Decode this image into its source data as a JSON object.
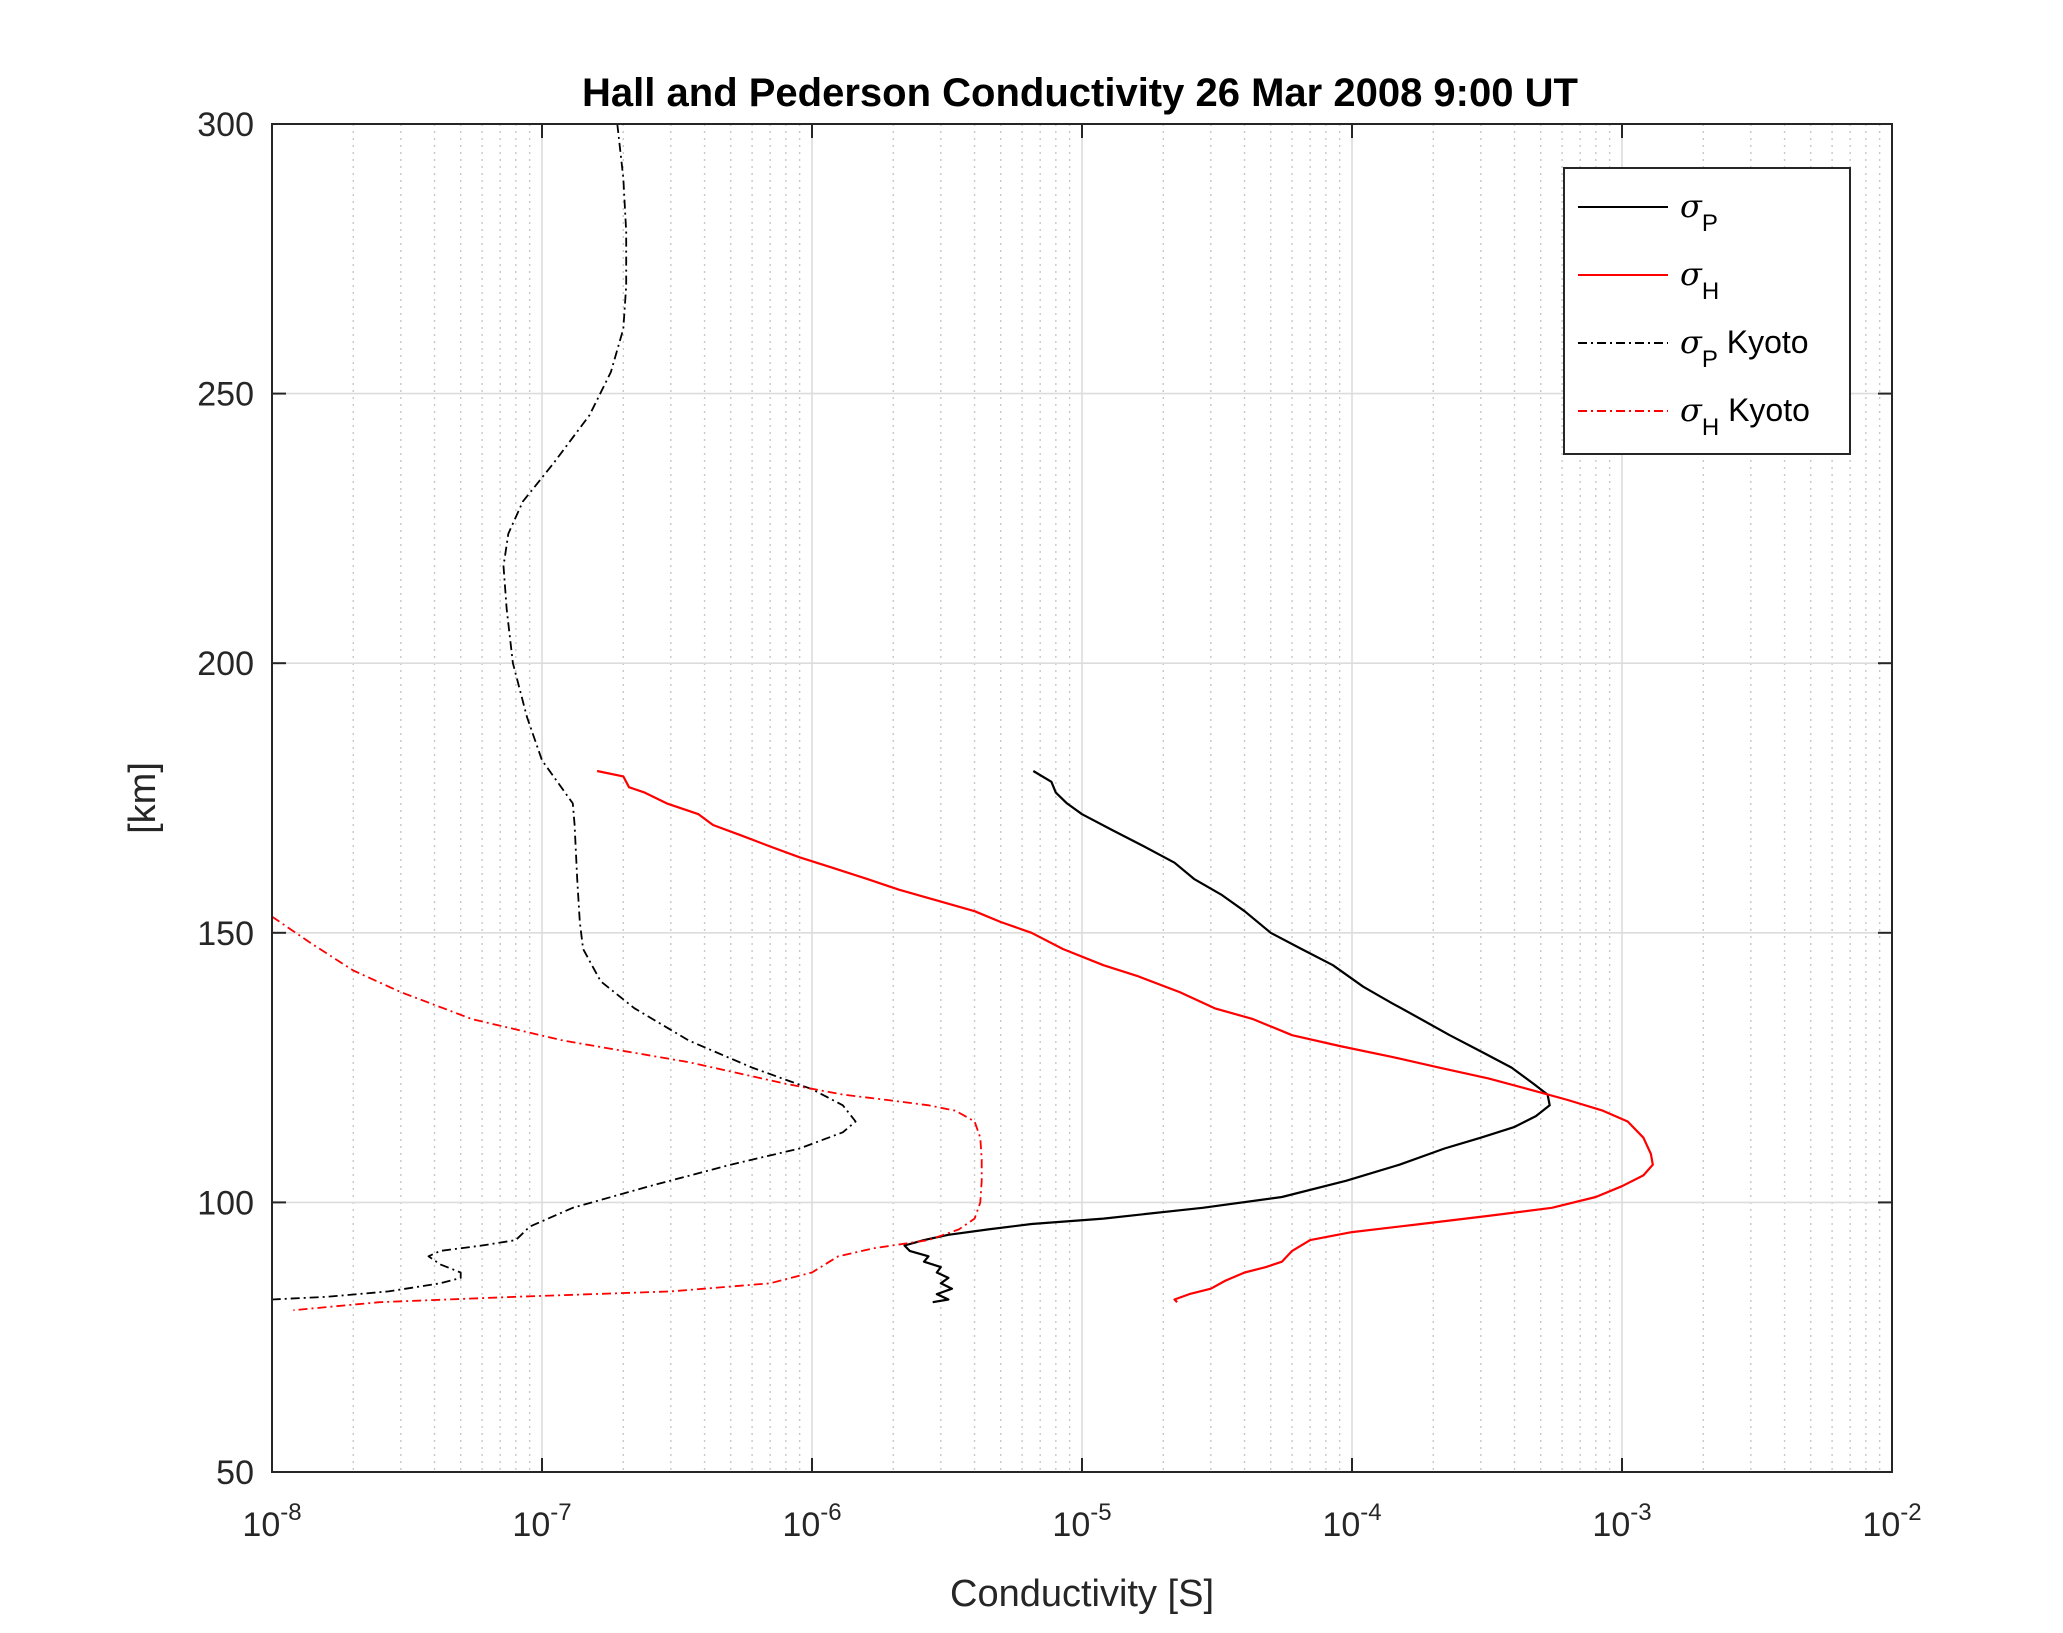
{
  "chart_data": {
    "type": "line",
    "title": "Hall and Pederson Conductivity 26 Mar 2008 9:00 UT",
    "xlabel": "Conductivity [S]",
    "ylabel": "[km]",
    "xscale": "log",
    "xlim": [
      1e-08,
      0.01
    ],
    "ylim": [
      50,
      300
    ],
    "xticks": [
      1e-08,
      1e-07,
      1e-06,
      1e-05,
      0.0001,
      0.001,
      0.01
    ],
    "xtick_labels": [
      {
        "base": "10",
        "exp": "-8"
      },
      {
        "base": "10",
        "exp": "-7"
      },
      {
        "base": "10",
        "exp": "-6"
      },
      {
        "base": "10",
        "exp": "-5"
      },
      {
        "base": "10",
        "exp": "-4"
      },
      {
        "base": "10",
        "exp": "-3"
      },
      {
        "base": "10",
        "exp": "-2"
      }
    ],
    "yticks": [
      50,
      100,
      150,
      200,
      250,
      300
    ],
    "grid": true,
    "minor_grid_x": true,
    "legend_position": "top-right",
    "series": [
      {
        "id": "sigma-p",
        "legend": {
          "symbol": "σ",
          "sub": "P",
          "suffix": ""
        },
        "color": "#000000",
        "dash": "solid",
        "points": [
          [
            6.6e-06,
            180
          ],
          [
            7.7e-06,
            178
          ],
          [
            8e-06,
            176
          ],
          [
            8.8e-06,
            174
          ],
          [
            1e-05,
            172
          ],
          [
            1.3e-05,
            169
          ],
          [
            1.7e-05,
            166
          ],
          [
            2.2e-05,
            163
          ],
          [
            2.6e-05,
            160
          ],
          [
            3.3e-05,
            157
          ],
          [
            4e-05,
            154
          ],
          [
            5e-05,
            150
          ],
          [
            6.5e-05,
            147
          ],
          [
            8.5e-05,
            144
          ],
          [
            0.00011,
            140
          ],
          [
            0.00014,
            137
          ],
          [
            0.00018,
            134
          ],
          [
            0.00023,
            131
          ],
          [
            0.0003,
            128
          ],
          [
            0.00039,
            125
          ],
          [
            0.00047,
            122
          ],
          [
            0.00053,
            120
          ],
          [
            0.00054,
            118
          ],
          [
            0.00048,
            116
          ],
          [
            0.0004,
            114
          ],
          [
            0.0003,
            112
          ],
          [
            0.00022,
            110
          ],
          [
            0.00015,
            107
          ],
          [
            9.5e-05,
            104
          ],
          [
            5.5e-05,
            101
          ],
          [
            2.8e-05,
            99
          ],
          [
            1.2e-05,
            97
          ],
          [
            6.5e-06,
            96
          ],
          [
            4.5e-06,
            95
          ],
          [
            3.2e-06,
            94
          ],
          [
            2.6e-06,
            93
          ],
          [
            2.2e-06,
            92
          ],
          [
            2.3e-06,
            91
          ],
          [
            2.7e-06,
            90
          ],
          [
            2.6e-06,
            89
          ],
          [
            3e-06,
            88
          ],
          [
            2.9e-06,
            87
          ],
          [
            3.2e-06,
            86
          ],
          [
            3e-06,
            85
          ],
          [
            3.3e-06,
            84
          ],
          [
            2.9e-06,
            83
          ],
          [
            3.2e-06,
            82
          ],
          [
            2.8e-06,
            81.5
          ]
        ]
      },
      {
        "id": "sigma-h",
        "legend": {
          "symbol": "σ",
          "sub": "H",
          "suffix": ""
        },
        "color": "#ff0000",
        "dash": "solid",
        "points": [
          [
            1.6e-07,
            180
          ],
          [
            2e-07,
            179
          ],
          [
            2.1e-07,
            177
          ],
          [
            2.4e-07,
            176
          ],
          [
            2.9e-07,
            174
          ],
          [
            3.8e-07,
            172
          ],
          [
            4.3e-07,
            170
          ],
          [
            5.5e-07,
            168
          ],
          [
            7e-07,
            166
          ],
          [
            9e-07,
            164
          ],
          [
            1.2e-06,
            162
          ],
          [
            1.6e-06,
            160
          ],
          [
            2.1e-06,
            158
          ],
          [
            2.9e-06,
            156
          ],
          [
            4e-06,
            154
          ],
          [
            5e-06,
            152
          ],
          [
            6.5e-06,
            150
          ],
          [
            8.5e-06,
            147
          ],
          [
            1.2e-05,
            144
          ],
          [
            1.6e-05,
            142
          ],
          [
            2.3e-05,
            139
          ],
          [
            3.1e-05,
            136
          ],
          [
            4.3e-05,
            134
          ],
          [
            6e-05,
            131
          ],
          [
            9e-05,
            129
          ],
          [
            0.00014,
            127
          ],
          [
            0.00021,
            125
          ],
          [
            0.00032,
            123
          ],
          [
            0.00045,
            121
          ],
          [
            0.00063,
            119
          ],
          [
            0.00085,
            117
          ],
          [
            0.00105,
            115
          ],
          [
            0.0012,
            112
          ],
          [
            0.00128,
            109
          ],
          [
            0.0013,
            107
          ],
          [
            0.0012,
            105
          ],
          [
            0.001,
            103
          ],
          [
            0.0008,
            101
          ],
          [
            0.00055,
            99
          ],
          [
            0.00032,
            97.5
          ],
          [
            0.00018,
            96
          ],
          [
            0.0001,
            94.5
          ],
          [
            7e-05,
            93
          ],
          [
            6e-05,
            91
          ],
          [
            5.5e-05,
            89
          ],
          [
            4.8e-05,
            88
          ],
          [
            4e-05,
            87
          ],
          [
            3.4e-05,
            85.5
          ],
          [
            3e-05,
            84
          ],
          [
            2.5e-05,
            83
          ],
          [
            2.2e-05,
            82
          ],
          [
            2.25e-05,
            81.5
          ]
        ]
      },
      {
        "id": "sigma-p-kyoto",
        "legend": {
          "symbol": "σ",
          "sub": "P",
          "suffix": " Kyoto"
        },
        "color": "#000000",
        "dash": "dashdot",
        "points": [
          [
            1.9e-07,
            300
          ],
          [
            2e-07,
            290
          ],
          [
            2.05e-07,
            280
          ],
          [
            2.05e-07,
            270
          ],
          [
            2e-07,
            262
          ],
          [
            1.8e-07,
            254
          ],
          [
            1.5e-07,
            246
          ],
          [
            1.1e-07,
            237
          ],
          [
            8.5e-08,
            230
          ],
          [
            7.5e-08,
            224
          ],
          [
            7.2e-08,
            218
          ],
          [
            7.4e-08,
            210
          ],
          [
            7.8e-08,
            200
          ],
          [
            8.8e-08,
            190
          ],
          [
            1e-07,
            182
          ],
          [
            1.3e-07,
            174
          ],
          [
            1.32e-07,
            170
          ],
          [
            1.35e-07,
            160
          ],
          [
            1.38e-07,
            152
          ],
          [
            1.42e-07,
            147
          ],
          [
            1.65e-07,
            141
          ],
          [
            2.2e-07,
            136
          ],
          [
            3.5e-07,
            130
          ],
          [
            6e-07,
            125
          ],
          [
            1e-06,
            121
          ],
          [
            1.3e-06,
            118
          ],
          [
            1.45e-06,
            115
          ],
          [
            1.3e-06,
            113
          ],
          [
            9e-07,
            110
          ],
          [
            5e-07,
            107
          ],
          [
            2.5e-07,
            103
          ],
          [
            1.3e-07,
            99
          ],
          [
            9e-08,
            95.5
          ],
          [
            8e-08,
            93
          ],
          [
            6e-08,
            92
          ],
          [
            4.2e-08,
            91
          ],
          [
            3.8e-08,
            90
          ],
          [
            4.2e-08,
            88.5
          ],
          [
            5e-08,
            87
          ],
          [
            5e-08,
            86
          ],
          [
            4.2e-08,
            85
          ],
          [
            2.7e-08,
            83.5
          ],
          [
            1.6e-08,
            82.5
          ],
          [
            1e-08,
            82
          ]
        ]
      },
      {
        "id": "sigma-h-kyoto",
        "legend": {
          "symbol": "σ",
          "sub": "H",
          "suffix": " Kyoto"
        },
        "color": "#ff0000",
        "dash": "dashdot",
        "points": [
          [
            1e-08,
            153
          ],
          [
            1.4e-08,
            148
          ],
          [
            2e-08,
            143
          ],
          [
            3e-08,
            139
          ],
          [
            5.5e-08,
            134
          ],
          [
            1.2e-07,
            130
          ],
          [
            3.5e-07,
            126
          ],
          [
            8e-07,
            122
          ],
          [
            1.3e-06,
            120
          ],
          [
            1.9e-06,
            119
          ],
          [
            2.7e-06,
            118
          ],
          [
            3.4e-06,
            117
          ],
          [
            4e-06,
            115
          ],
          [
            4.2e-06,
            112
          ],
          [
            4.25e-06,
            108
          ],
          [
            4.25e-06,
            104
          ],
          [
            4.2e-06,
            100
          ],
          [
            4e-06,
            97
          ],
          [
            3.5e-06,
            95
          ],
          [
            2.7e-06,
            93
          ],
          [
            1.7e-06,
            91.5
          ],
          [
            1.25e-06,
            90
          ],
          [
            1e-06,
            87
          ],
          [
            7e-07,
            85
          ],
          [
            3e-07,
            83.5
          ],
          [
            8e-08,
            82.5
          ],
          [
            2.5e-08,
            81.5
          ],
          [
            1.2e-08,
            80
          ]
        ]
      }
    ]
  }
}
